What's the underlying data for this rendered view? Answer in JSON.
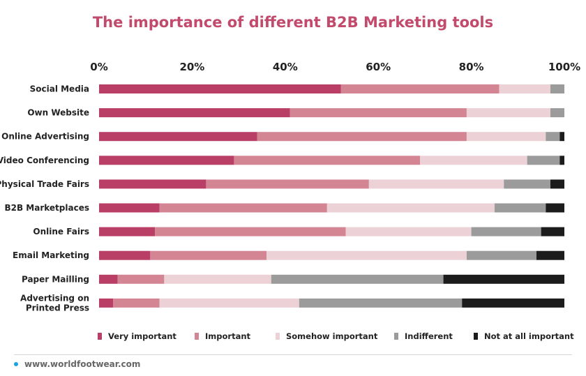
{
  "chart_data": {
    "type": "bar",
    "orientation": "horizontal",
    "stacked": true,
    "title": "The importance of different B2B Marketing tools",
    "categories": [
      "Social Media",
      "Own Website",
      "Online Advertising",
      "Video Conferencing",
      "Physical Trade Fairs",
      "B2B Marketplaces",
      "Online Fairs",
      "Email Marketing",
      "Paper Mailling",
      "Advertising on Printed Press"
    ],
    "category_lines": [
      [
        "Social Media"
      ],
      [
        "Own Website"
      ],
      [
        "Online Advertising"
      ],
      [
        "Video Conferencing"
      ],
      [
        "Physical Trade Fairs"
      ],
      [
        "B2B Marketplaces"
      ],
      [
        "Online Fairs"
      ],
      [
        "Email Marketing"
      ],
      [
        "Paper Mailling"
      ],
      [
        "Advertising on",
        "Printed Press"
      ]
    ],
    "series": [
      {
        "name": "Very important",
        "color": "#b93f66",
        "values": [
          52,
          41,
          34,
          29,
          23,
          13,
          12,
          11,
          4,
          3
        ]
      },
      {
        "name": "Important",
        "color": "#d48593",
        "values": [
          34,
          38,
          45,
          40,
          35,
          36,
          41,
          25,
          10,
          10
        ]
      },
      {
        "name": "Somehow important",
        "color": "#ecd2d7",
        "values": [
          11,
          18,
          17,
          23,
          29,
          36,
          27,
          43,
          23,
          30
        ]
      },
      {
        "name": "Indifferent",
        "color": "#9b9b9b",
        "values": [
          3,
          3,
          3,
          7,
          10,
          11,
          15,
          15,
          37,
          35
        ]
      },
      {
        "name": "Not at all important",
        "color": "#1c1c1c",
        "values": [
          0,
          0,
          1,
          1,
          3,
          4,
          5,
          6,
          26,
          22
        ]
      }
    ],
    "xlim": [
      0,
      100
    ],
    "x_ticks": [
      "0%",
      "20%",
      "40%",
      "60%",
      "80%",
      "100%"
    ],
    "x_axis_position": "top",
    "grid": false,
    "legend_position": "bottom"
  },
  "footer": {
    "source": "www.worldfootwear.com",
    "dot_color": "#1aa3df"
  }
}
